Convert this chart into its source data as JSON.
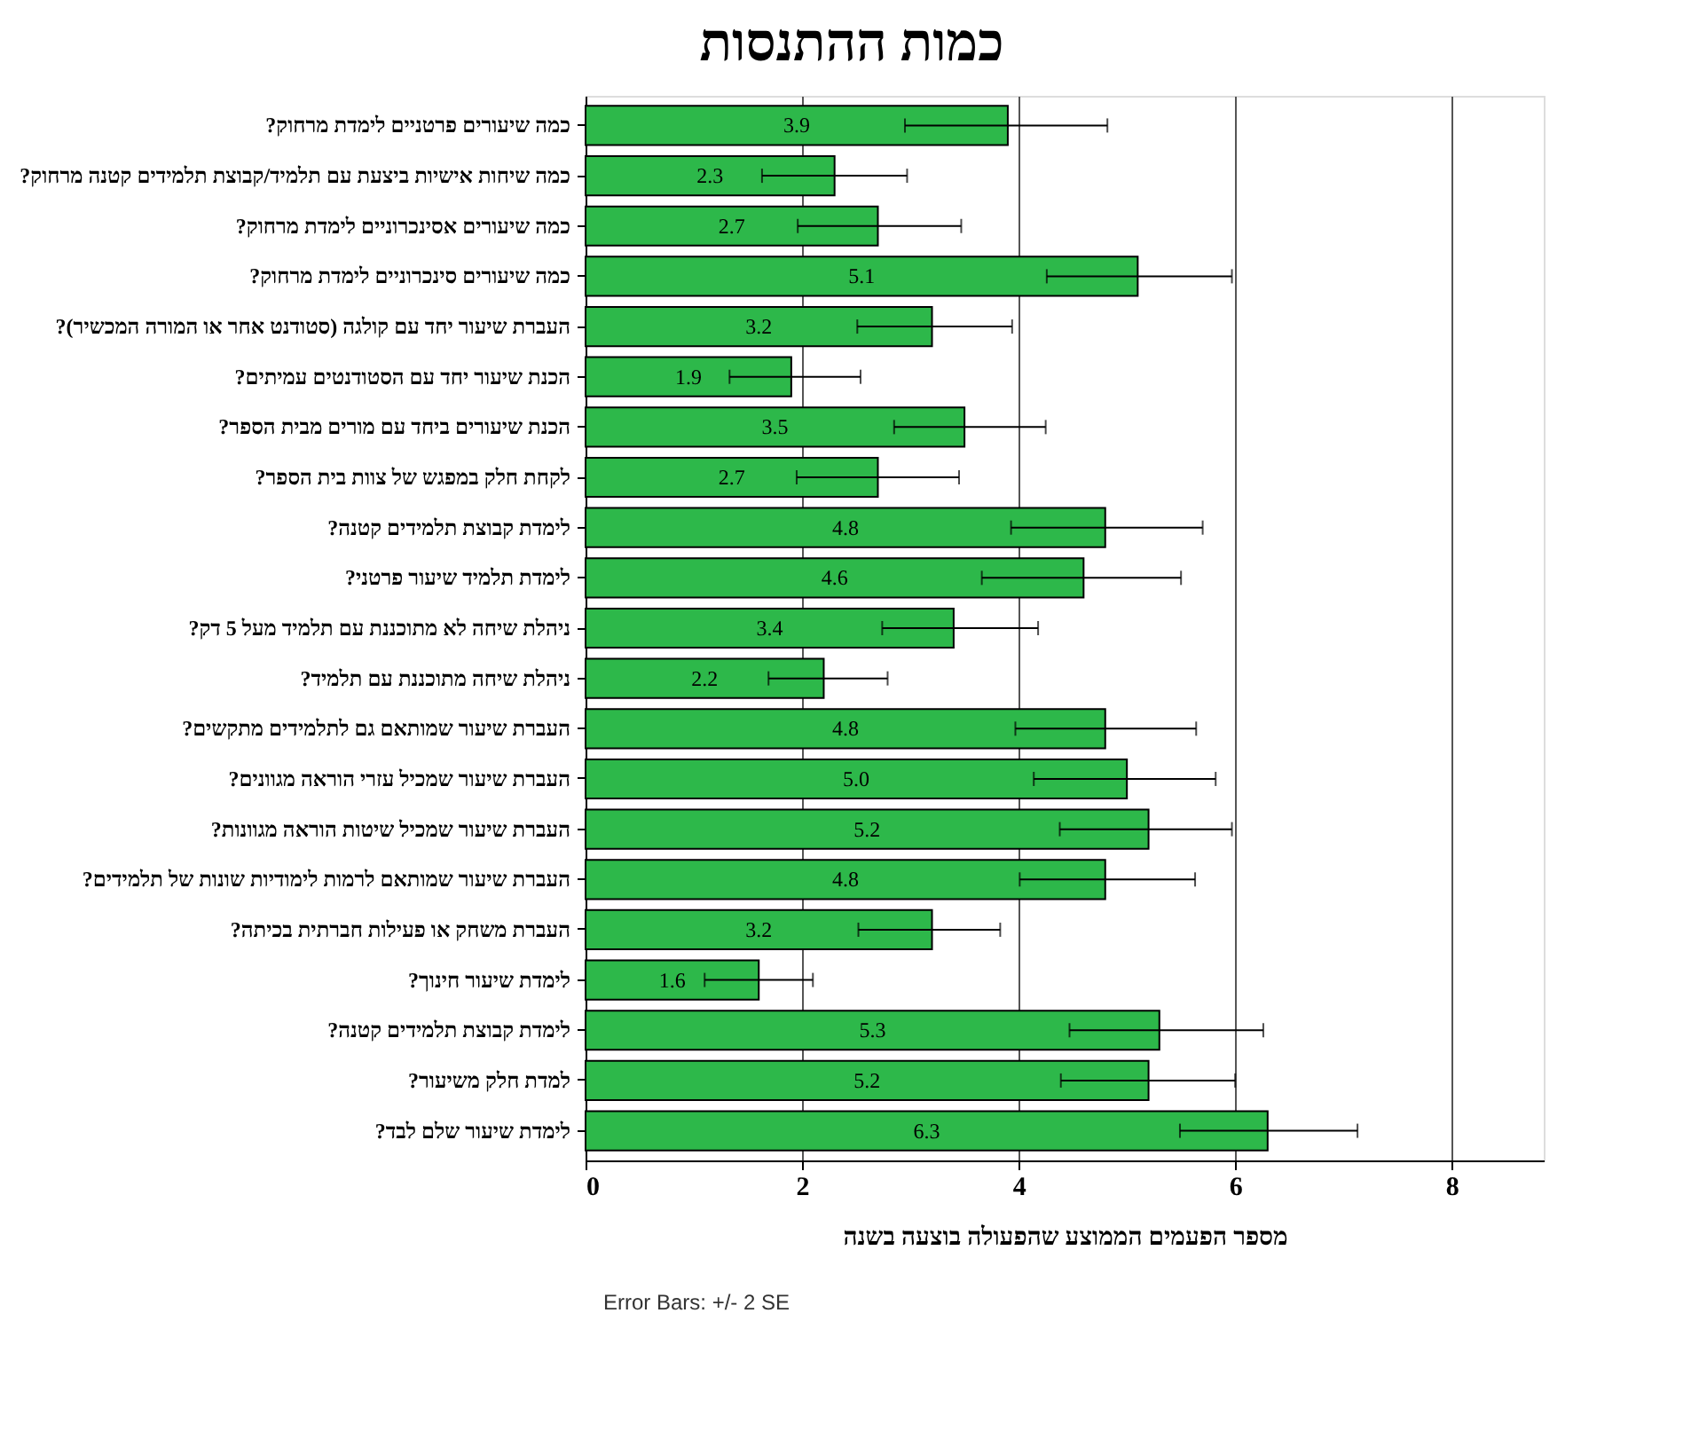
{
  "chart_data": {
    "type": "bar",
    "orientation": "horizontal",
    "title": "כמות ההתנסות",
    "xlabel": "מספר הפעמים הממוצע שהפעולה בוצעה בשנה",
    "categories": [
      "כמה שיעורים פרטניים לימדת מרחוק?",
      "כמה שיחות אישיות ביצעת עם תלמיד/קבוצת תלמידים קטנה מרחוק?",
      "כמה שיעורים אסינכרוניים לימדת מרחוק?",
      "כמה שיעורים סינכרוניים לימדת מרחוק?",
      "העברת שיעור יחד עם קולגה (סטודנט אחר או המורה המכשיר)?",
      "הכנת שיעור יחד עם הסטודנטים עמיתים?",
      "הכנת שיעורים ביחד עם מורים מבית הספר?",
      "לקחת חלק במפגש של צוות בית הספר?",
      "לימדת קבוצת תלמידים קטנה?",
      "לימדת תלמיד שיעור פרטני?",
      "ניהלת שיחה לא מתוכננת עם תלמיד מעל 5 דק?",
      "ניהלת שיחה מתוכננת עם תלמיד?",
      "העברת שיעור שמותאם גם לתלמידים מתקשים?",
      "העברת שיעור שמכיל עזרי הוראה מגוונים?",
      "העברת שיעור שמכיל שיטות הוראה מגוונות?",
      "העברת שיעור שמותאם לרמות לימודיות שונות של תלמידים?",
      "העברת משחק או פעילות חברתית בכיתה?",
      "לימדת שיעור חינוך?",
      "לימדת קבוצת תלמידים קטנה?",
      "למדת חלק משיעור?",
      "לימדת שיעור שלם לבד?"
    ],
    "values": [
      3.9,
      2.3,
      2.7,
      5.1,
      3.2,
      1.9,
      3.5,
      2.7,
      4.8,
      4.6,
      3.4,
      2.2,
      4.8,
      5.0,
      5.2,
      4.8,
      3.2,
      1.6,
      5.3,
      5.2,
      6.3
    ],
    "errors": [
      [
        2.95,
        4.82
      ],
      [
        1.63,
        2.97
      ],
      [
        1.96,
        3.47
      ],
      [
        4.26,
        5.97
      ],
      [
        2.51,
        3.94
      ],
      [
        1.33,
        2.54
      ],
      [
        2.85,
        4.25
      ],
      [
        1.95,
        3.45
      ],
      [
        3.93,
        5.7
      ],
      [
        3.66,
        5.5
      ],
      [
        2.74,
        4.18
      ],
      [
        1.69,
        2.79
      ],
      [
        3.97,
        5.64
      ],
      [
        4.14,
        5.82
      ],
      [
        4.38,
        5.97
      ],
      [
        4.01,
        5.63
      ],
      [
        2.52,
        3.83
      ],
      [
        1.1,
        2.1
      ],
      [
        4.47,
        6.26
      ],
      [
        4.39,
        6.0
      ],
      [
        5.49,
        7.13
      ]
    ],
    "value_labels": [
      "3.9",
      "2.3",
      "2.7",
      "5.1",
      "3.2",
      "1.9",
      "3.5",
      "2.7",
      "4.8",
      "4.6",
      "3.4",
      "2.2",
      "4.8",
      "5.0",
      "5.2",
      "4.8",
      "3.2",
      "1.6",
      "5.3",
      "5.2",
      "6.3"
    ],
    "color": "#2db84a",
    "xlim": [
      0,
      8.85
    ],
    "xticks": [
      0,
      2,
      4,
      6,
      8
    ],
    "grid": "x",
    "legend": false,
    "annotations": [
      "Error Bars: +/- 2 SE"
    ]
  }
}
